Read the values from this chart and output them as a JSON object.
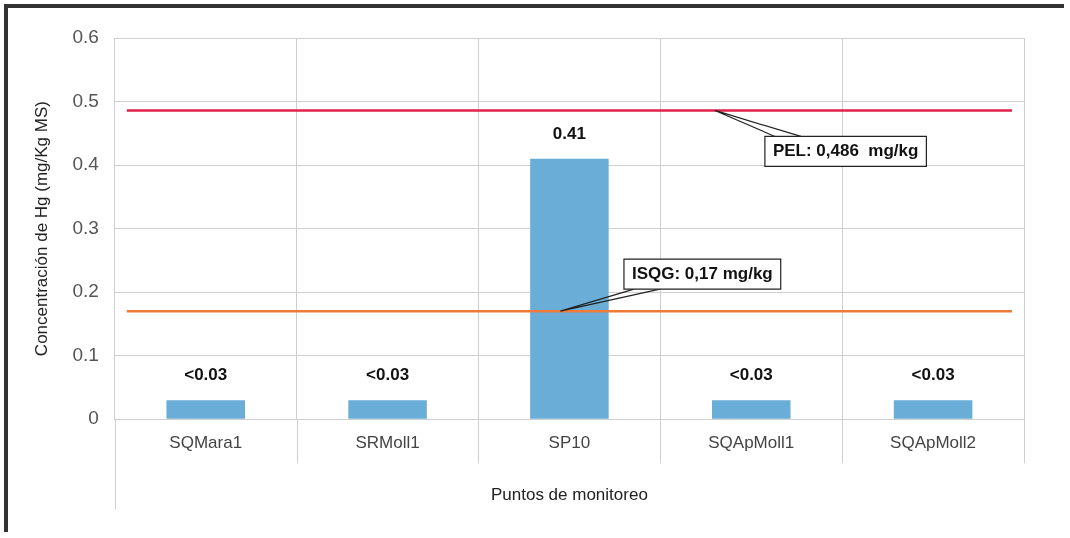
{
  "chart_data": {
    "type": "bar",
    "xlabel": "Puntos de monitoreo",
    "ylabel": "Concentración de Hg (mg/Kg MS)",
    "categories": [
      "SQMara1",
      "SRMoll1",
      "SP10",
      "SQApMoll1",
      "SQApMoll2"
    ],
    "values": [
      0.03,
      0.03,
      0.41,
      0.03,
      0.03
    ],
    "color": "#6aaed8",
    "value_labels": [
      "<0.03",
      "<0.03",
      "0.41",
      "<0.03",
      "<0.03"
    ],
    "ylim": [
      0,
      0.6
    ],
    "yticks": [
      0,
      0.1,
      0.2,
      0.3,
      0.4,
      0.5,
      0.6
    ],
    "grid": true,
    "ref_lines": [
      {
        "axis": "y",
        "value": 0.486,
        "label": "PEL: 0,486  mg/kg",
        "color": "#e0204a"
      },
      {
        "axis": "y",
        "value": 0.17,
        "label": "ISQG: 0,17 mg/kg",
        "color": "#f07a3a"
      }
    ]
  }
}
